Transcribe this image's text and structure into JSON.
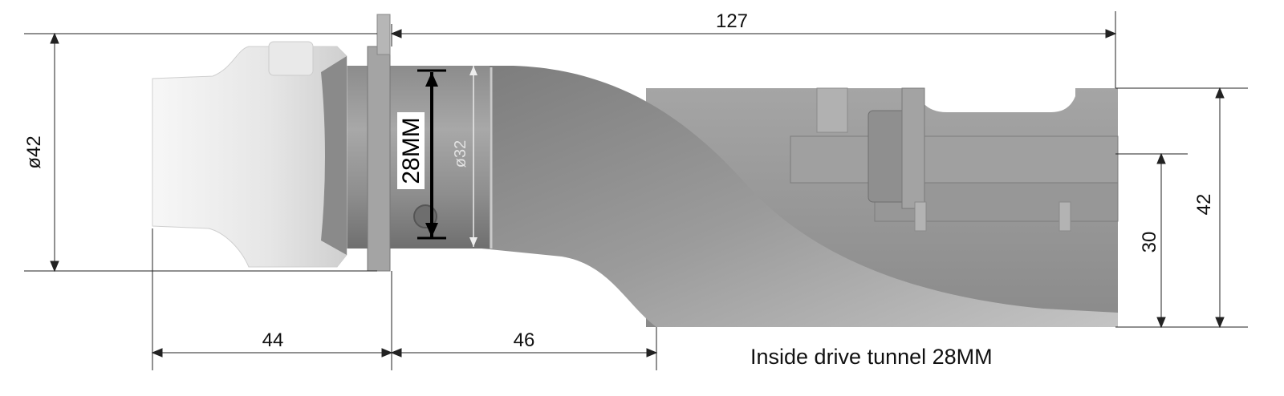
{
  "drawing": {
    "dimensions": {
      "overall_length": "127",
      "flange_diameter": "ø42",
      "tube_outer_diameter": "ø32",
      "inner_bore": "28MM",
      "front_length": "44",
      "middle_length": "46",
      "rear_height": "42",
      "rear_offset": "30"
    },
    "caption": "Inside drive tunnel 28MM",
    "colors": {
      "line": "#222222",
      "part_light": "#ececec",
      "part_mid": "#9a9a9a",
      "part_dark": "#6e6e6e",
      "bore_label_bg": "#ffffff"
    }
  }
}
